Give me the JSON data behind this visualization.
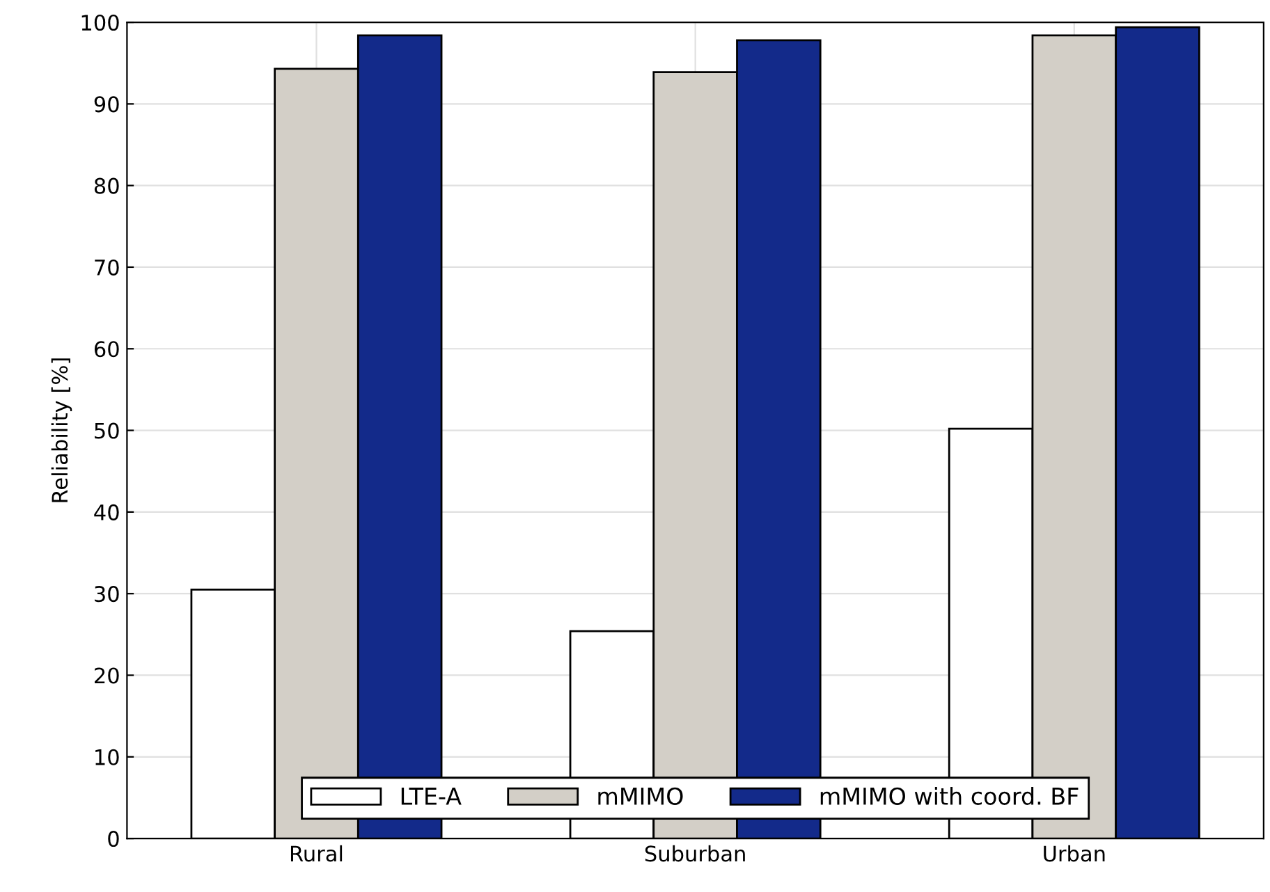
{
  "chart_data": {
    "type": "bar",
    "ylabel": "Reliability [%]",
    "categories": [
      "Rural",
      "Suburban",
      "Urban"
    ],
    "series": [
      {
        "name": "LTE-A",
        "color": "#ffffff",
        "values": [
          30.5,
          25.4,
          50.2
        ]
      },
      {
        "name": "mMIMO",
        "color": "#d3cfc7",
        "values": [
          94.3,
          93.9,
          98.4
        ]
      },
      {
        "name": "mMIMO with coord. BF",
        "color": "#132a8a",
        "values": [
          98.4,
          97.8,
          99.4
        ]
      }
    ],
    "ylim": [
      0,
      100
    ],
    "yticks": [
      0,
      10,
      20,
      30,
      40,
      50,
      60,
      70,
      80,
      90,
      100
    ],
    "grid": true,
    "legend": "bottom"
  }
}
